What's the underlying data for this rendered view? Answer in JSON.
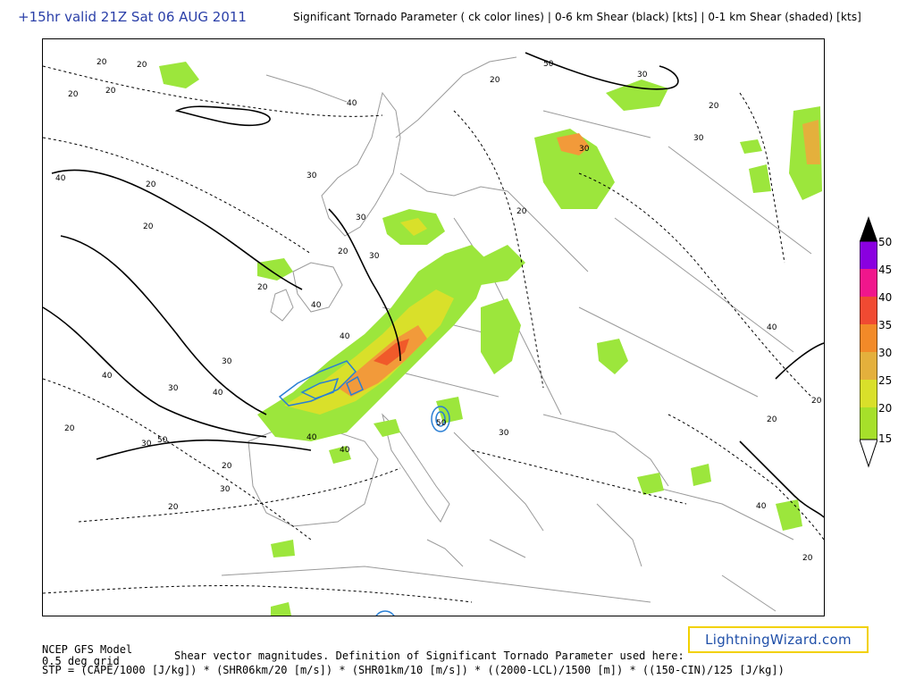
{
  "header": {
    "valid_text": "+15hr valid 21Z Sat 06 AUG 2011",
    "title_text": "Significant Tornado Parameter ( ck color lines) | 0-6 km Shear (black) [kts] | 0-1 km Shear (shaded) [kts]"
  },
  "colorbar": {
    "labels": [
      "50",
      "45",
      "40",
      "35",
      "30",
      "25",
      "20",
      "15"
    ],
    "colors": [
      "#000000",
      "#8a00e0",
      "#f0168c",
      "#f04a32",
      "#f28a28",
      "#e4b03c",
      "#d9e02a",
      "#a6e02a"
    ]
  },
  "map": {
    "shear_contour_labels": [
      "20",
      "20",
      "20",
      "20",
      "40",
      "20",
      "20",
      "30",
      "30",
      "40",
      "40",
      "20",
      "30",
      "40",
      "30",
      "20",
      "30",
      "40",
      "50",
      "40",
      "50",
      "40",
      "50",
      "30",
      "20",
      "20",
      "20",
      "30",
      "20",
      "30",
      "40",
      "20",
      "20",
      "30",
      "40",
      "30",
      "20",
      "20",
      "20",
      "30",
      "20",
      "40"
    ],
    "colors": {
      "shade_light": "#9ce63c",
      "shade_mid": "#d9e02a",
      "shade_orange": "#f29a3a",
      "shade_red": "#f05a2a",
      "stp_contour": "#2a7fd4",
      "coastline": "#9a9a9a",
      "shear_contour": "#000000"
    }
  },
  "footer": {
    "model": "NCEP GFS Model",
    "grid": "0.5 deg grid",
    "definition": "Shear vector magnitudes. Definition of Significant Tornado Parameter used here:",
    "formula": "STP = (CAPE/1000 [J/kg]) * (SHR06km/20 [m/s]) * (SHR01km/10 [m/s]) * ((2000-LCL)/1500 [m]) * ((150-CIN)/125 [J/kg])"
  },
  "brand": "LightningWizard.com"
}
